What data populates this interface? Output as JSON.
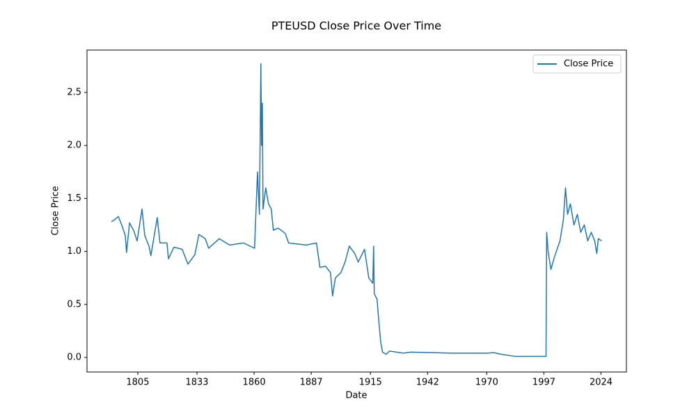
{
  "chart_data": {
    "type": "line",
    "title": "PTEUSD Close Price Over Time",
    "x_label": "Date",
    "y_label": "Close Price",
    "x": [
      1792.5,
      1794.1,
      1795.8,
      1797.4,
      1799.1,
      1799.7,
      1801.1,
      1803.0,
      1804.7,
      1807.0,
      1808.3,
      1810.3,
      1811.2,
      1813.2,
      1814.2,
      1815.5,
      1818.8,
      1819.5,
      1822.1,
      1826.0,
      1828.7,
      1832.0,
      1833.9,
      1836.9,
      1838.5,
      1843.5,
      1848.4,
      1855.0,
      1860.2,
      1861.6,
      1862.5,
      1863.2,
      1863.5,
      1863.9,
      1864.2,
      1865.5,
      1866.8,
      1868.1,
      1869.1,
      1871.4,
      1874.7,
      1876.3,
      1884.6,
      1889.5,
      1890.2,
      1891.1,
      1893.8,
      1896.1,
      1897.1,
      1898.4,
      1901.0,
      1903.0,
      1905.0,
      1907.6,
      1909.2,
      1912.2,
      1914.2,
      1916.1,
      1916.5,
      1916.8,
      1918.1,
      1918.8,
      1919.8,
      1920.7,
      1922.4,
      1924.0,
      1930.6,
      1933.9,
      1953.6,
      1970.1,
      1973.3,
      1976.6,
      1983.2,
      1998.0,
      1998.3,
      1999.0,
      2000.3,
      2002.0,
      2004.6,
      2006.2,
      2007.2,
      2008.2,
      2009.5,
      2011.2,
      2012.8,
      2014.4,
      2016.1,
      2017.7,
      2019.4,
      2021.0,
      2022.0,
      2022.7,
      2024.3
    ],
    "series": [
      {
        "name": "Close Price",
        "color": "#1f77b4",
        "values": [
          1.28,
          1.3,
          1.33,
          1.25,
          1.15,
          0.99,
          1.27,
          1.2,
          1.1,
          1.4,
          1.15,
          1.05,
          0.96,
          1.2,
          1.32,
          1.08,
          1.08,
          0.93,
          1.04,
          1.02,
          0.88,
          0.97,
          1.16,
          1.12,
          1.03,
          1.12,
          1.06,
          1.08,
          1.03,
          1.75,
          1.35,
          2.77,
          2.0,
          2.4,
          1.4,
          1.6,
          1.45,
          1.4,
          1.2,
          1.22,
          1.17,
          1.08,
          1.06,
          1.08,
          0.98,
          0.85,
          0.86,
          0.8,
          0.58,
          0.75,
          0.8,
          0.9,
          1.05,
          0.98,
          0.9,
          1.02,
          0.75,
          0.7,
          1.05,
          0.6,
          0.55,
          0.38,
          0.15,
          0.05,
          0.03,
          0.06,
          0.04,
          0.05,
          0.04,
          0.04,
          0.045,
          0.03,
          0.01,
          0.01,
          1.18,
          1.0,
          0.83,
          0.95,
          1.1,
          1.3,
          1.6,
          1.35,
          1.45,
          1.25,
          1.35,
          1.18,
          1.25,
          1.1,
          1.18,
          1.1,
          0.98,
          1.12,
          1.1
        ]
      }
    ],
    "xlim": [
      1781,
      2036
    ],
    "ylim": [
      -0.138,
      2.9
    ],
    "xticks": [
      1805,
      1833,
      1860,
      1887,
      1915,
      1942,
      1970,
      1997,
      2024
    ],
    "yticks": [
      {
        "value": 0,
        "label": "0.0"
      },
      0.5,
      {
        "value": 1,
        "label": "1.0"
      },
      1.5,
      {
        "value": 2,
        "label": "2.0"
      },
      2.5
    ],
    "legend": "upper right"
  }
}
